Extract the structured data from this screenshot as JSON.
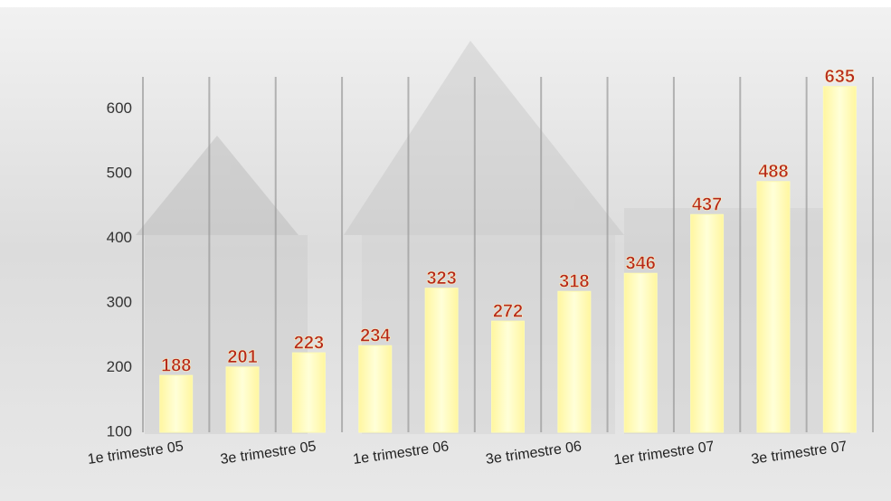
{
  "chart_data": {
    "type": "bar",
    "categories": [
      "1e trimestre 05",
      null,
      "3e trimestre 05",
      null,
      "1e trimestre 06",
      null,
      "3e trimestre 06",
      null,
      "1er trimestre 07",
      null,
      "3e trimestre 07"
    ],
    "values": [
      188,
      201,
      223,
      234,
      323,
      272,
      318,
      346,
      437,
      488,
      635
    ],
    "color": "#fffbb0",
    "ylim": [
      100,
      650
    ],
    "yticks": [
      100,
      200,
      300,
      400,
      500,
      600
    ]
  }
}
